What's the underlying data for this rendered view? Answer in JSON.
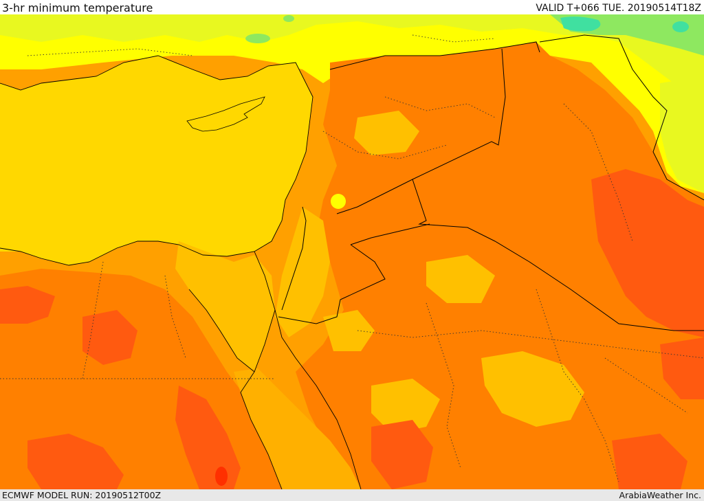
{
  "header": {
    "title": "3-hr minimum temperature",
    "valid": "VALID T+066 TUE. 20190514T18Z"
  },
  "footer": {
    "model_run": "ECMWF MODEL RUN: 20190512T00Z",
    "credit": "ArabiaWeather Inc."
  },
  "colors": {
    "sea": "#ffd800",
    "cool_green": "#8ee860",
    "teal": "#40e0a0",
    "yellow_green": "#e8f820",
    "yellow": "#ffff00",
    "light_orange": "#ffc000",
    "orange": "#ffa000",
    "deep_orange": "#ff8000",
    "red_orange": "#ff5a10",
    "red": "#ff3000"
  }
}
